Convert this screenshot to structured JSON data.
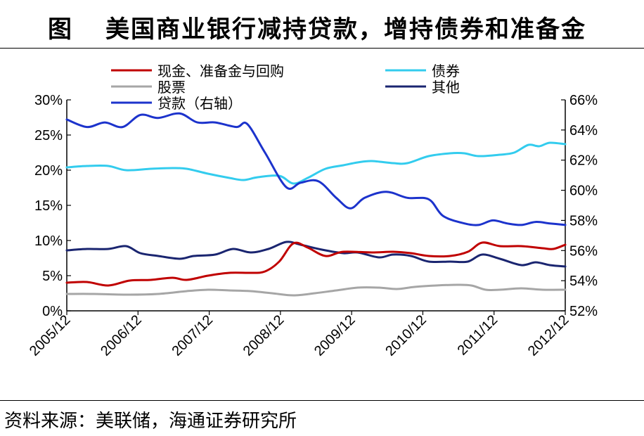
{
  "figure": {
    "label": "图",
    "title": "美国商业银行减持贷款，增持债券和准备金",
    "source": "资料来源：美联储，海通证券研究所"
  },
  "chart_data": {
    "type": "line",
    "x_ticks": [
      "2005/12",
      "2006/12",
      "2007/12",
      "2008/12",
      "2009/12",
      "2010/12",
      "2011/12",
      "2012/12"
    ],
    "x_range": [
      2005.917,
      2012.917
    ],
    "y_left": {
      "range": [
        0,
        30
      ],
      "ticks": [
        "0%",
        "5%",
        "10%",
        "15%",
        "20%",
        "25%",
        "30%"
      ]
    },
    "y_right": {
      "range": [
        52,
        66
      ],
      "ticks": [
        "52%",
        "54%",
        "56%",
        "58%",
        "60%",
        "62%",
        "64%",
        "66%"
      ]
    },
    "legend": "top, two columns",
    "series": [
      {
        "name": "现金、准备金与回购",
        "axis": "left",
        "color": "#c00000",
        "points": [
          [
            2005.917,
            4.0
          ],
          [
            2006.2,
            4.1
          ],
          [
            2006.5,
            3.6
          ],
          [
            2006.8,
            4.3
          ],
          [
            2007.1,
            4.4
          ],
          [
            2007.4,
            4.7
          ],
          [
            2007.6,
            4.4
          ],
          [
            2007.9,
            5.0
          ],
          [
            2008.2,
            5.4
          ],
          [
            2008.5,
            5.4
          ],
          [
            2008.7,
            5.6
          ],
          [
            2008.9,
            7.0
          ],
          [
            2009.1,
            9.6
          ],
          [
            2009.3,
            9.0
          ],
          [
            2009.55,
            7.8
          ],
          [
            2009.8,
            8.4
          ],
          [
            2010.2,
            8.3
          ],
          [
            2010.5,
            8.4
          ],
          [
            2010.75,
            8.2
          ],
          [
            2011.0,
            7.8
          ],
          [
            2011.3,
            7.8
          ],
          [
            2011.55,
            8.4
          ],
          [
            2011.75,
            9.7
          ],
          [
            2012.0,
            9.2
          ],
          [
            2012.3,
            9.2
          ],
          [
            2012.6,
            8.9
          ],
          [
            2012.75,
            8.8
          ],
          [
            2012.917,
            9.4
          ]
        ]
      },
      {
        "name": "债券",
        "axis": "left",
        "color": "#33ccee",
        "points": [
          [
            2005.917,
            20.4
          ],
          [
            2006.2,
            20.6
          ],
          [
            2006.5,
            20.6
          ],
          [
            2006.75,
            20.0
          ],
          [
            2007.1,
            20.2
          ],
          [
            2007.4,
            20.3
          ],
          [
            2007.6,
            20.2
          ],
          [
            2007.9,
            19.5
          ],
          [
            2008.2,
            18.9
          ],
          [
            2008.4,
            18.6
          ],
          [
            2008.6,
            19.0
          ],
          [
            2008.9,
            19.2
          ],
          [
            2009.1,
            18.1
          ],
          [
            2009.3,
            18.9
          ],
          [
            2009.55,
            20.2
          ],
          [
            2009.8,
            20.7
          ],
          [
            2010.0,
            21.1
          ],
          [
            2010.2,
            21.3
          ],
          [
            2010.5,
            21.0
          ],
          [
            2010.7,
            21.0
          ],
          [
            2011.0,
            22.0
          ],
          [
            2011.3,
            22.4
          ],
          [
            2011.5,
            22.4
          ],
          [
            2011.7,
            22.0
          ],
          [
            2012.0,
            22.2
          ],
          [
            2012.2,
            22.5
          ],
          [
            2012.4,
            23.6
          ],
          [
            2012.55,
            23.4
          ],
          [
            2012.7,
            23.9
          ],
          [
            2012.917,
            23.7
          ]
        ]
      },
      {
        "name": "股票",
        "axis": "left",
        "color": "#a6a6a6",
        "points": [
          [
            2005.917,
            2.4
          ],
          [
            2006.3,
            2.4
          ],
          [
            2006.8,
            2.3
          ],
          [
            2007.2,
            2.4
          ],
          [
            2007.6,
            2.8
          ],
          [
            2007.9,
            3.0
          ],
          [
            2008.2,
            2.9
          ],
          [
            2008.5,
            2.8
          ],
          [
            2008.8,
            2.5
          ],
          [
            2009.1,
            2.2
          ],
          [
            2009.4,
            2.5
          ],
          [
            2009.7,
            2.9
          ],
          [
            2010.0,
            3.3
          ],
          [
            2010.3,
            3.3
          ],
          [
            2010.55,
            3.1
          ],
          [
            2010.8,
            3.4
          ],
          [
            2011.1,
            3.6
          ],
          [
            2011.4,
            3.7
          ],
          [
            2011.6,
            3.6
          ],
          [
            2011.8,
            3.0
          ],
          [
            2012.0,
            3.0
          ],
          [
            2012.3,
            3.2
          ],
          [
            2012.6,
            3.0
          ],
          [
            2012.917,
            3.0
          ]
        ]
      },
      {
        "name": "其他",
        "axis": "left",
        "color": "#1a2570",
        "points": [
          [
            2005.917,
            8.6
          ],
          [
            2006.2,
            8.8
          ],
          [
            2006.5,
            8.8
          ],
          [
            2006.75,
            9.2
          ],
          [
            2006.95,
            8.2
          ],
          [
            2007.2,
            7.8
          ],
          [
            2007.5,
            7.4
          ],
          [
            2007.7,
            7.8
          ],
          [
            2008.0,
            8.0
          ],
          [
            2008.25,
            8.8
          ],
          [
            2008.5,
            8.3
          ],
          [
            2008.75,
            8.8
          ],
          [
            2009.0,
            9.8
          ],
          [
            2009.2,
            9.4
          ],
          [
            2009.5,
            8.7
          ],
          [
            2009.8,
            8.2
          ],
          [
            2010.0,
            8.3
          ],
          [
            2010.3,
            7.6
          ],
          [
            2010.5,
            8.0
          ],
          [
            2010.75,
            7.8
          ],
          [
            2011.0,
            7.0
          ],
          [
            2011.3,
            7.0
          ],
          [
            2011.55,
            7.0
          ],
          [
            2011.75,
            8.0
          ],
          [
            2012.0,
            7.4
          ],
          [
            2012.3,
            6.5
          ],
          [
            2012.5,
            6.9
          ],
          [
            2012.7,
            6.5
          ],
          [
            2012.917,
            6.3
          ]
        ]
      },
      {
        "name": "贷款（右轴）",
        "axis": "right",
        "color": "#1c33cc",
        "points": [
          [
            2005.917,
            64.7
          ],
          [
            2006.2,
            64.2
          ],
          [
            2006.45,
            64.5
          ],
          [
            2006.7,
            64.2
          ],
          [
            2006.95,
            65.0
          ],
          [
            2007.2,
            64.8
          ],
          [
            2007.5,
            65.1
          ],
          [
            2007.75,
            64.5
          ],
          [
            2008.0,
            64.5
          ],
          [
            2008.3,
            64.2
          ],
          [
            2008.45,
            64.4
          ],
          [
            2008.7,
            62.5
          ],
          [
            2009.0,
            60.2
          ],
          [
            2009.2,
            60.5
          ],
          [
            2009.45,
            60.6
          ],
          [
            2009.7,
            59.5
          ],
          [
            2009.9,
            58.8
          ],
          [
            2010.1,
            59.5
          ],
          [
            2010.4,
            59.9
          ],
          [
            2010.7,
            59.5
          ],
          [
            2011.0,
            59.4
          ],
          [
            2011.2,
            58.3
          ],
          [
            2011.5,
            57.8
          ],
          [
            2011.7,
            57.7
          ],
          [
            2011.9,
            58.0
          ],
          [
            2012.1,
            57.8
          ],
          [
            2012.3,
            57.7
          ],
          [
            2012.5,
            57.9
          ],
          [
            2012.7,
            57.8
          ],
          [
            2012.917,
            57.7
          ]
        ]
      }
    ]
  }
}
